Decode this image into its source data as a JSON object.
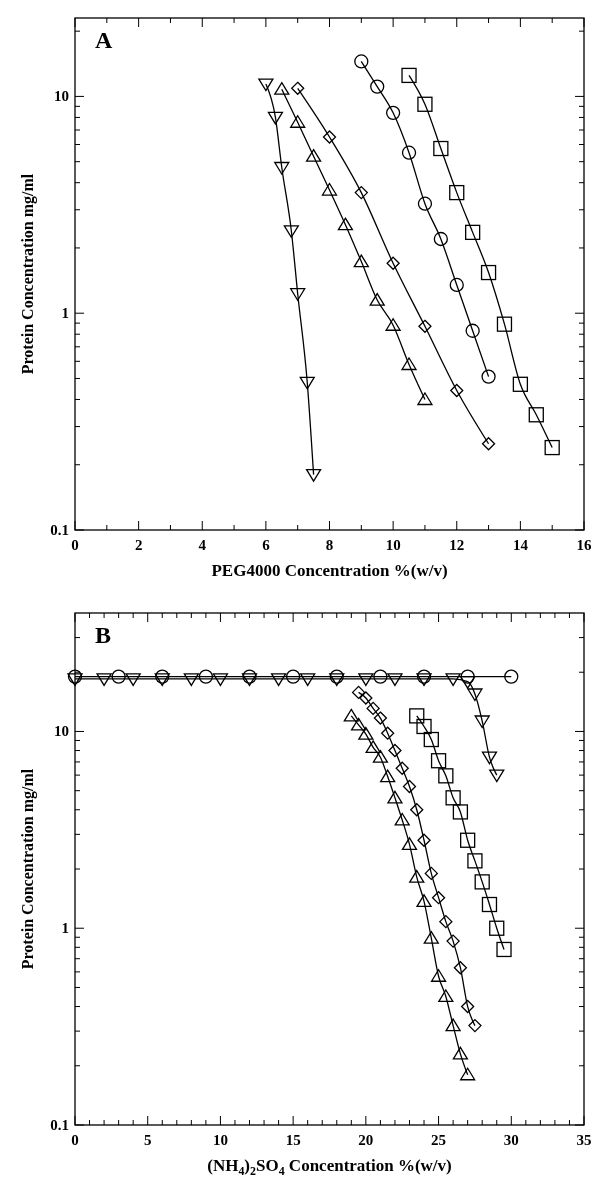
{
  "chart_data": [
    {
      "type": "line",
      "title": "A",
      "xlabel": "PEG4000 Concentration %(w/v)",
      "ylabel": "Protein Concentration mg/ml",
      "log": "y",
      "xlim": [
        0,
        16
      ],
      "xticks": [
        0,
        {
          "value": 1,
          "label": null
        },
        2,
        {
          "value": 3,
          "label": null
        },
        4,
        {
          "value": 5,
          "label": null
        },
        6,
        {
          "value": 7,
          "label": null
        },
        8,
        {
          "value": 9,
          "label": null
        },
        10,
        {
          "value": 11,
          "label": null
        },
        12,
        {
          "value": 13,
          "label": null
        },
        14,
        {
          "value": 15,
          "label": null
        },
        16
      ],
      "ylim": [
        0.1,
        23
      ],
      "yticks": [
        0.1,
        {
          "value": 0.2,
          "label": null
        },
        {
          "value": 0.3,
          "label": null
        },
        {
          "value": 0.4,
          "label": null
        },
        {
          "value": 0.5,
          "label": null
        },
        {
          "value": 0.6,
          "label": null
        },
        {
          "value": 0.7,
          "label": null
        },
        {
          "value": 0.8,
          "label": null
        },
        {
          "value": 0.9,
          "label": null
        },
        1,
        {
          "value": 2,
          "label": null
        },
        {
          "value": 3,
          "label": null
        },
        {
          "value": 4,
          "label": null
        },
        {
          "value": 5,
          "label": null
        },
        {
          "value": 6,
          "label": null
        },
        {
          "value": 7,
          "label": null
        },
        {
          "value": 8,
          "label": null
        },
        {
          "value": 9,
          "label": null
        },
        10,
        {
          "value": 20,
          "label": null
        }
      ],
      "series": [
        {
          "color": "#000000",
          "marker": "triangle-down",
          "x": [
            6.0,
            6.3,
            6.5,
            6.8,
            7.0,
            7.3,
            7.5
          ],
          "values": [
            11.4,
            8.0,
            4.7,
            2.4,
            1.23,
            0.48,
            0.18
          ]
        },
        {
          "color": "#000000",
          "marker": "triangle",
          "x": [
            6.5,
            7.0,
            7.5,
            8.0,
            8.5,
            9.0,
            9.5,
            10.0,
            10.5,
            11.0
          ],
          "values": [
            10.8,
            7.6,
            5.3,
            3.7,
            2.56,
            1.73,
            1.15,
            0.88,
            0.58,
            0.4
          ]
        },
        {
          "color": "#000000",
          "marker": "diamond",
          "x": [
            7,
            8,
            9,
            10,
            11,
            12,
            13
          ],
          "values": [
            10.9,
            6.5,
            3.6,
            1.7,
            0.87,
            0.44,
            0.25
          ]
        },
        {
          "color": "#000000",
          "marker": "circle",
          "x": [
            9.0,
            9.5,
            10.0,
            10.5,
            11.0,
            11.5,
            12.0,
            12.5,
            13.0
          ],
          "values": [
            14.5,
            11.1,
            8.4,
            5.5,
            3.2,
            2.2,
            1.35,
            0.83,
            0.51
          ]
        },
        {
          "color": "#000000",
          "marker": "square",
          "x": [
            10.5,
            11.0,
            11.5,
            12.0,
            12.5,
            13.0,
            13.5,
            14.0,
            14.5,
            15.0
          ],
          "values": [
            12.5,
            9.2,
            5.75,
            3.6,
            2.36,
            1.54,
            0.89,
            0.47,
            0.34,
            0.24
          ]
        }
      ]
    },
    {
      "type": "line",
      "title": "B",
      "xlabel": "(NH$_{4}$)$_{2}$SO$_{4}$ Concentration %(w/v)",
      "ylabel": "Protein Concentration mg/ml",
      "log": "y",
      "xlim": [
        0,
        35
      ],
      "xticks": [
        0,
        {
          "value": 1,
          "label": null
        },
        {
          "value": 2,
          "label": null
        },
        {
          "value": 3,
          "label": null
        },
        {
          "value": 4,
          "label": null
        },
        5,
        {
          "value": 6,
          "label": null
        },
        {
          "value": 7,
          "label": null
        },
        {
          "value": 8,
          "label": null
        },
        {
          "value": 9,
          "label": null
        },
        10,
        {
          "value": 11,
          "label": null
        },
        {
          "value": 12,
          "label": null
        },
        {
          "value": 13,
          "label": null
        },
        {
          "value": 14,
          "label": null
        },
        15,
        {
          "value": 16,
          "label": null
        },
        {
          "value": 17,
          "label": null
        },
        {
          "value": 18,
          "label": null
        },
        {
          "value": 19,
          "label": null
        },
        20,
        {
          "value": 21,
          "label": null
        },
        {
          "value": 22,
          "label": null
        },
        {
          "value": 23,
          "label": null
        },
        {
          "value": 24,
          "label": null
        },
        25,
        {
          "value": 26,
          "label": null
        },
        {
          "value": 27,
          "label": null
        },
        {
          "value": 28,
          "label": null
        },
        {
          "value": 29,
          "label": null
        },
        30,
        {
          "value": 31,
          "label": null
        },
        {
          "value": 32,
          "label": null
        },
        {
          "value": 33,
          "label": null
        },
        {
          "value": 34,
          "label": null
        },
        35
      ],
      "ylim": [
        0.1,
        40
      ],
      "yticks": [
        0.1,
        {
          "value": 0.2,
          "label": null
        },
        {
          "value": 0.3,
          "label": null
        },
        {
          "value": 0.4,
          "label": null
        },
        {
          "value": 0.5,
          "label": null
        },
        {
          "value": 0.6,
          "label": null
        },
        {
          "value": 0.7,
          "label": null
        },
        {
          "value": 0.8,
          "label": null
        },
        {
          "value": 0.9,
          "label": null
        },
        1,
        {
          "value": 2,
          "label": null
        },
        {
          "value": 3,
          "label": null
        },
        {
          "value": 4,
          "label": null
        },
        {
          "value": 5,
          "label": null
        },
        {
          "value": 6,
          "label": null
        },
        {
          "value": 7,
          "label": null
        },
        {
          "value": 8,
          "label": null
        },
        {
          "value": 9,
          "label": null
        },
        10,
        {
          "value": 20,
          "label": null
        },
        {
          "value": 30,
          "label": null
        }
      ],
      "series": [
        {
          "color": "#000000",
          "marker": "circle",
          "x": [
            0,
            3,
            6,
            9,
            12,
            15,
            18,
            21,
            24,
            27,
            30
          ],
          "values": [
            19,
            19,
            19,
            19,
            19,
            19,
            19,
            19,
            19,
            19,
            19
          ]
        },
        {
          "color": "#000000",
          "marker": "triangle-down",
          "x": [
            0,
            2,
            4,
            6,
            8,
            10,
            12,
            14,
            16,
            18,
            20,
            22,
            24,
            26,
            27,
            27.5,
            28,
            28.5,
            29
          ],
          "values": [
            18.5,
            18.5,
            18.5,
            18.5,
            18.5,
            18.5,
            18.5,
            18.5,
            18.5,
            18.5,
            18.5,
            18.5,
            18.5,
            18.5,
            17.9,
            15.5,
            11.3,
            7.4,
            6.0
          ]
        },
        {
          "color": "#000000",
          "marker": "triangle",
          "x": [
            19,
            19.5,
            20,
            20.5,
            21,
            21.5,
            22,
            22.5,
            23,
            23.5,
            24,
            24.5,
            25,
            25.5,
            26,
            26.5,
            27
          ],
          "values": [
            12.0,
            10.8,
            9.7,
            8.3,
            7.4,
            5.9,
            4.6,
            3.55,
            2.67,
            1.82,
            1.37,
            0.89,
            0.57,
            0.45,
            0.32,
            0.23,
            0.18
          ]
        },
        {
          "color": "#000000",
          "marker": "diamond",
          "x": [
            19.5,
            20,
            20.5,
            21,
            21.5,
            22,
            22.5,
            23,
            23.5,
            24,
            24.5,
            25,
            25.5,
            26,
            26.5,
            27,
            27.5
          ],
          "values": [
            15.8,
            14.8,
            13.1,
            11.7,
            9.8,
            8.0,
            6.5,
            5.25,
            4.0,
            2.8,
            1.9,
            1.43,
            1.08,
            0.86,
            0.63,
            0.4,
            0.32
          ]
        },
        {
          "color": "#000000",
          "marker": "square",
          "x": [
            23.5,
            24,
            24.5,
            25,
            25.5,
            26,
            26.5,
            27,
            27.5,
            28,
            28.5,
            29,
            29.5
          ],
          "values": [
            12.0,
            10.6,
            9.1,
            7.1,
            5.95,
            4.6,
            3.9,
            2.8,
            2.2,
            1.72,
            1.32,
            1.0,
            0.78
          ]
        }
      ]
    }
  ]
}
